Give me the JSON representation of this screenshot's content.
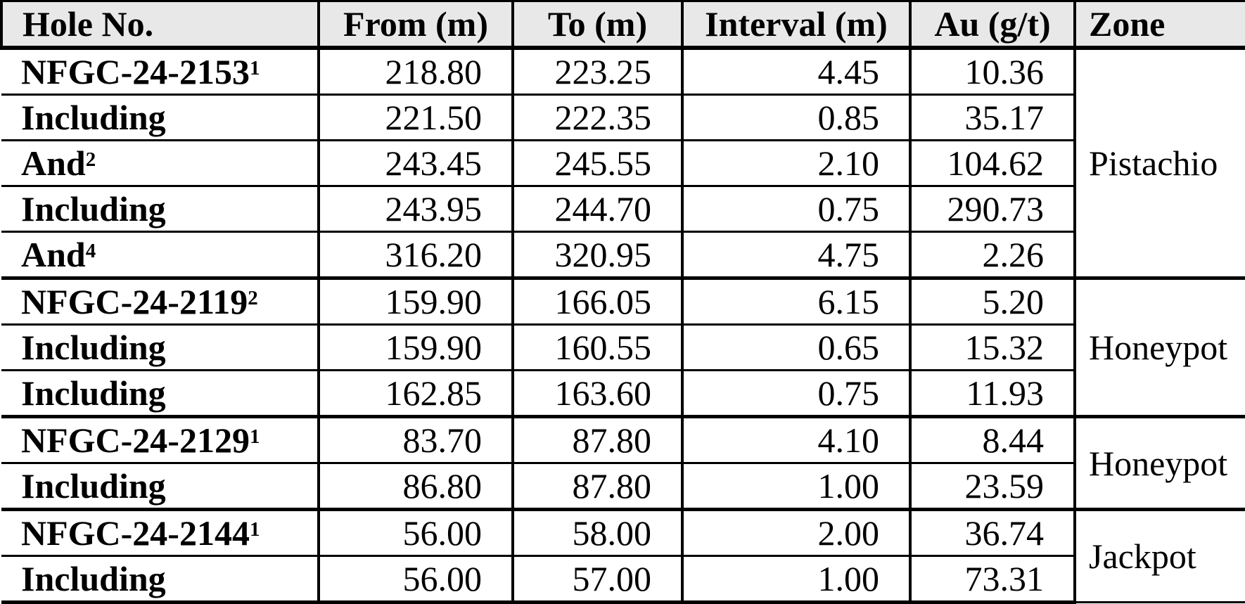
{
  "table": {
    "colors": {
      "header_bg": "#e8e8e8",
      "border": "#000000",
      "text": "#000000",
      "row_bg": "#ffffff"
    },
    "columns": [
      {
        "label": "Hole No."
      },
      {
        "label": "From (m)"
      },
      {
        "label": "To (m)"
      },
      {
        "label": "Interval (m)"
      },
      {
        "label": "Au (g/t)"
      },
      {
        "label": "Zone"
      }
    ],
    "rows": [
      {
        "hole": "NFGC-24-2153",
        "sup": "1",
        "from": "218.80",
        "to": "223.25",
        "interval": "4.45",
        "au": "10.36",
        "zone": "Pistachio",
        "zone_rowspan": 5,
        "group_start": true
      },
      {
        "hole": "Including",
        "sup": "",
        "from": "221.50",
        "to": "222.35",
        "interval": "0.85",
        "au": "35.17"
      },
      {
        "hole": "And",
        "sup": "2",
        "from": "243.45",
        "to": "245.55",
        "interval": "2.10",
        "au": "104.62"
      },
      {
        "hole": "Including",
        "sup": "",
        "from": "243.95",
        "to": "244.70",
        "interval": "0.75",
        "au": "290.73"
      },
      {
        "hole": "And",
        "sup": "4",
        "from": "316.20",
        "to": "320.95",
        "interval": "4.75",
        "au": "2.26"
      },
      {
        "hole": "NFGC-24-2119",
        "sup": "2",
        "from": "159.90",
        "to": "166.05",
        "interval": "6.15",
        "au": "5.20",
        "zone": "Honeypot",
        "zone_rowspan": 3,
        "group_start": true
      },
      {
        "hole": "Including",
        "sup": "",
        "from": "159.90",
        "to": "160.55",
        "interval": "0.65",
        "au": "15.32"
      },
      {
        "hole": "Including",
        "sup": "",
        "from": "162.85",
        "to": "163.60",
        "interval": "0.75",
        "au": "11.93"
      },
      {
        "hole": "NFGC-24-2129",
        "sup": "1",
        "from": "83.70",
        "to": "87.80",
        "interval": "4.10",
        "au": "8.44",
        "zone": "Honeypot",
        "zone_rowspan": 2,
        "group_start": true
      },
      {
        "hole": "Including",
        "sup": "",
        "from": "86.80",
        "to": "87.80",
        "interval": "1.00",
        "au": "23.59"
      },
      {
        "hole": "NFGC-24-2144",
        "sup": "1",
        "from": "56.00",
        "to": "58.00",
        "interval": "2.00",
        "au": "36.74",
        "zone": "Jackpot",
        "zone_rowspan": 2,
        "group_start": true
      },
      {
        "hole": "Including",
        "sup": "",
        "from": "56.00",
        "to": "57.00",
        "interval": "1.00",
        "au": "73.31"
      }
    ]
  }
}
